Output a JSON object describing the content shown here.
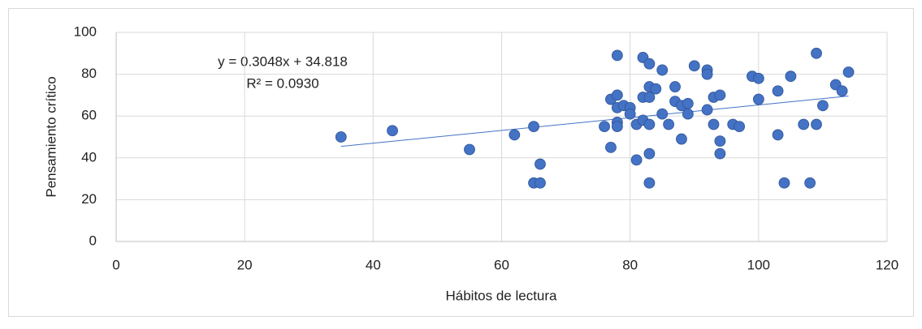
{
  "chart_data": {
    "type": "scatter",
    "xlabel": "Hábitos de lectura",
    "ylabel": "Pensamiento crítico",
    "xlim": [
      0,
      120
    ],
    "xticks": [
      0,
      20,
      40,
      60,
      80,
      100,
      120
    ],
    "ylim": [
      0,
      100
    ],
    "yticks": [
      0,
      20,
      40,
      60,
      80,
      100
    ],
    "grid": true,
    "color": "#4472c4",
    "x": [
      35,
      43,
      55,
      62,
      65,
      65,
      66,
      66,
      76,
      77,
      77,
      78,
      78,
      78,
      78,
      78,
      79,
      80,
      80,
      81,
      81,
      82,
      82,
      82,
      83,
      83,
      83,
      83,
      83,
      83,
      84,
      85,
      85,
      86,
      87,
      87,
      88,
      88,
      89,
      89,
      90,
      92,
      92,
      92,
      93,
      93,
      94,
      94,
      94,
      96,
      97,
      99,
      100,
      100,
      103,
      103,
      104,
      105,
      107,
      108,
      109,
      109,
      110,
      112,
      113,
      114
    ],
    "values": [
      50,
      53,
      44,
      51,
      55,
      28,
      28,
      37,
      55,
      45,
      68,
      89,
      70,
      64,
      57,
      55,
      65,
      64,
      61,
      56,
      39,
      69,
      88,
      58,
      85,
      74,
      69,
      56,
      42,
      28,
      73,
      82,
      61,
      56,
      74,
      67,
      65,
      49,
      66,
      61,
      84,
      82,
      80,
      63,
      69,
      56,
      70,
      48,
      42,
      56,
      55,
      79,
      78,
      68,
      72,
      51,
      28,
      79,
      56,
      28,
      90,
      56,
      65,
      75,
      72,
      81
    ],
    "trendline": {
      "label": "y = 0.3048x + 34.818",
      "r2_label": "R² = 0.0930",
      "slope": 0.3048,
      "intercept": 34.818,
      "color": "#4472c4"
    }
  }
}
